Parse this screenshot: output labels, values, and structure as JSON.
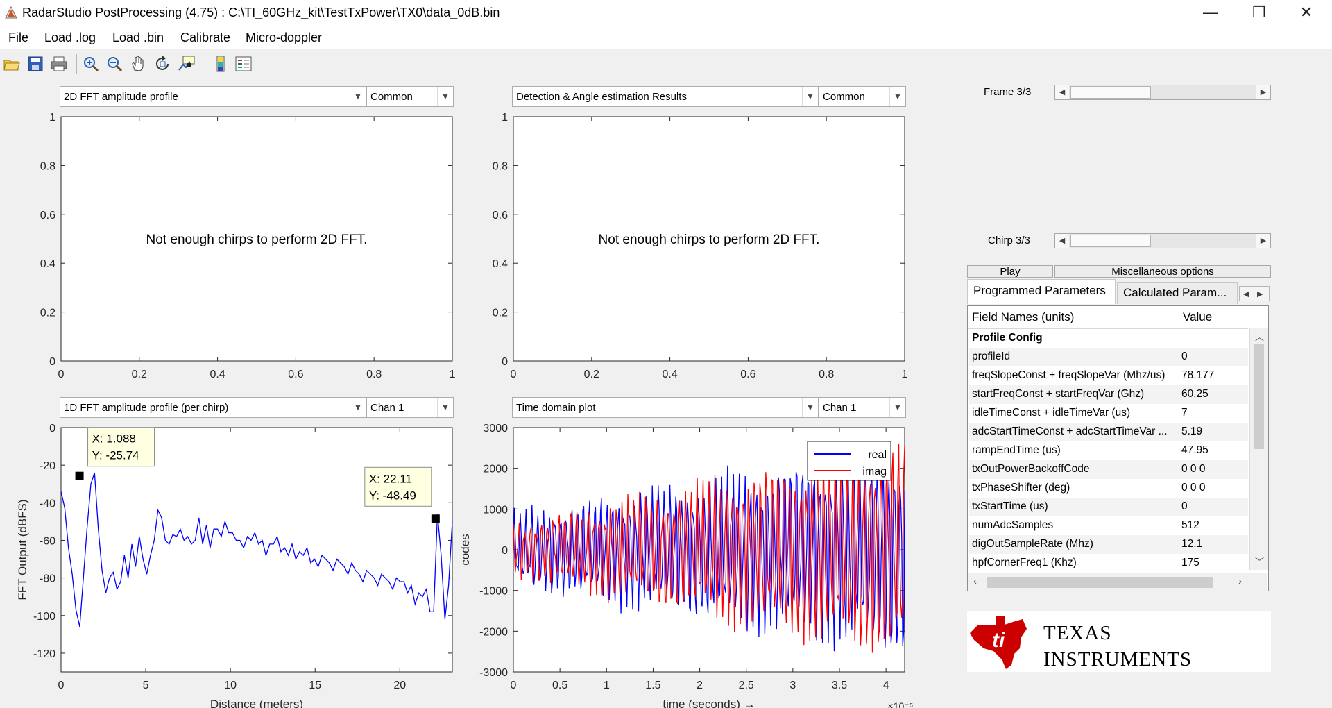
{
  "window": {
    "title": "RadarStudio PostProcessing (4.75)  : C:\\TI_60GHz_kit\\TestTxPower\\TX0\\data_0dB.bin",
    "minimize": "—",
    "maximize": "❐",
    "close": "✕"
  },
  "menu": [
    "File",
    "Load .log",
    "Load .bin",
    "Calibrate",
    "Micro-doppler"
  ],
  "toolbar_icons": [
    "open-icon",
    "save-icon",
    "print-icon",
    "zoom-in-icon",
    "zoom-out-icon",
    "pan-icon",
    "rotate-icon",
    "data-cursor-icon",
    "colorbar-icon",
    "legend-icon"
  ],
  "panels": {
    "tl": {
      "select": "2D FFT amplitude profile",
      "option": "Common",
      "message": "Not enough chirps to perform 2D FFT."
    },
    "tr": {
      "select": "Detection & Angle estimation Results",
      "option": "Common",
      "message": "Not enough chirps to perform 2D FFT."
    },
    "bl": {
      "select": "1D FFT amplitude profile (per chirp)",
      "option": "Chan 1"
    },
    "br": {
      "select": "Time domain plot",
      "option": "Chan 1"
    }
  },
  "controls": {
    "frame_label": "Frame 3/3",
    "chirp_label": "Chirp 3/3",
    "frame_value": 3,
    "frame_max": 3,
    "chirp_value": 3,
    "chirp_max": 3,
    "play": "Play",
    "misc": "Miscellaneous options"
  },
  "tabs": {
    "programmed": "Programmed Parameters",
    "calculated": "Calculated Param..."
  },
  "table": {
    "headers": [
      "Field Names   (units)",
      "Value"
    ],
    "section": "Profile Config",
    "rows": [
      [
        "profileId",
        "0"
      ],
      [
        "freqSlopeConst + freqSlopeVar (Mhz/us)",
        "78.177"
      ],
      [
        "startFreqConst + startFreqVar (Ghz)",
        "60.25"
      ],
      [
        "idleTimeConst + idleTimeVar (us)",
        "7"
      ],
      [
        "adcStartTimeConst + adcStartTimeVar ...",
        "5.19"
      ],
      [
        "rampEndTime (us)",
        "47.95"
      ],
      [
        "txOutPowerBackoffCode",
        "0 0 0"
      ],
      [
        "txPhaseShifter (deg)",
        "0 0 0"
      ],
      [
        "txStartTime (us)",
        "0"
      ],
      [
        "numAdcSamples",
        "512"
      ],
      [
        "digOutSampleRate (Mhz)",
        "12.1"
      ],
      [
        "hpfCornerFreq1 (Khz)",
        "175"
      ]
    ]
  },
  "logo": {
    "line1": "Texas",
    "line2": "Instruments",
    "color": "#cc0000"
  },
  "chart_data": [
    {
      "type": "line",
      "id": "tl",
      "xlim": [
        0,
        1
      ],
      "ylim": [
        0,
        1
      ],
      "xticks": [
        "0",
        "0.2",
        "0.4",
        "0.6",
        "0.8",
        "1"
      ],
      "yticks": [
        "0",
        "0.2",
        "0.4",
        "0.6",
        "0.8",
        "1"
      ],
      "series": []
    },
    {
      "type": "line",
      "id": "tr",
      "xlim": [
        0,
        1
      ],
      "ylim": [
        0,
        1
      ],
      "xticks": [
        "0",
        "0.2",
        "0.4",
        "0.6",
        "0.8",
        "1"
      ],
      "yticks": [
        "0",
        "0.2",
        "0.4",
        "0.6",
        "0.8",
        "1"
      ],
      "series": []
    },
    {
      "type": "line",
      "id": "bl",
      "xlabel": "Distance (meters)",
      "ylabel": "FFT Output (dBFS)",
      "xlim": [
        0,
        23.1
      ],
      "ylim": [
        -130,
        0
      ],
      "xticks": [
        "0",
        "5",
        "10",
        "15",
        "20"
      ],
      "xtick_values": [
        0,
        5,
        10,
        15,
        20
      ],
      "yticks": [
        "0",
        "-20",
        "-40",
        "-60",
        "-80",
        "-100",
        "-120"
      ],
      "ytick_values": [
        0,
        -20,
        -40,
        -60,
        -80,
        -100,
        -120
      ],
      "series": [
        {
          "color": "#0000ff",
          "x_range": [
            0,
            23.1
          ],
          "values": [
            -32,
            -45,
            -62,
            -80,
            -95,
            -108,
            -78,
            -55,
            -28,
            -26,
            -52,
            -78,
            -86,
            -82,
            -75,
            -88,
            -80,
            -70,
            -78,
            -64,
            -72,
            -60,
            -68,
            -80,
            -66,
            -62,
            -42,
            -50,
            -58,
            -64,
            -55,
            -60,
            -52,
            -62,
            -56,
            -64,
            -58,
            -50,
            -60,
            -54,
            -62,
            -56,
            -52,
            -60,
            -48,
            -58,
            -54,
            -62,
            -58,
            -66,
            -56,
            -62,
            -54,
            -64,
            -58,
            -70,
            -60,
            -64,
            -56,
            -68,
            -62,
            -70,
            -60,
            -72,
            -64,
            -70,
            -62,
            -74,
            -68,
            -76,
            -66,
            -72,
            -70,
            -78,
            -68,
            -74,
            -72,
            -80,
            -70,
            -78,
            -76,
            -84,
            -74,
            -80,
            -78,
            -86,
            -76,
            -82,
            -80,
            -88,
            -78,
            -84,
            -80,
            -90,
            -82,
            -96,
            -86,
            -92,
            -84,
            -100,
            -96,
            -48,
            -66,
            -104,
            -82,
            -52
          ]
        }
      ],
      "datatips": [
        {
          "x": 1.088,
          "y": -25.74
        },
        {
          "x": 22.11,
          "y": -48.49
        }
      ]
    },
    {
      "type": "line",
      "id": "br",
      "xlabel": "time  (seconds) →",
      "ylabel": "codes",
      "x_exponent": "×10⁻⁵",
      "xlim": [
        0,
        4.2
      ],
      "ylim": [
        -3000,
        3000
      ],
      "xticks": [
        "0",
        "0.5",
        "1",
        "1.5",
        "2",
        "2.5",
        "3",
        "3.5",
        "4"
      ],
      "xtick_values": [
        0,
        0.5,
        1,
        1.5,
        2,
        2.5,
        3,
        3.5,
        4
      ],
      "yticks": [
        "3000",
        "2000",
        "1000",
        "0",
        "-1000",
        "-2000",
        "-3000"
      ],
      "ytick_values": [
        3000,
        2000,
        1000,
        0,
        -1000,
        -2000,
        -3000
      ],
      "series": [
        {
          "name": "real",
          "color": "#0000ff",
          "amplitude": [
            700,
            2100
          ],
          "freq": 17,
          "phase": 0.3
        },
        {
          "name": "imag",
          "color": "#ff0000",
          "amplitude": [
            500,
            2200
          ],
          "freq": 17,
          "phase": 1.9
        }
      ]
    }
  ]
}
